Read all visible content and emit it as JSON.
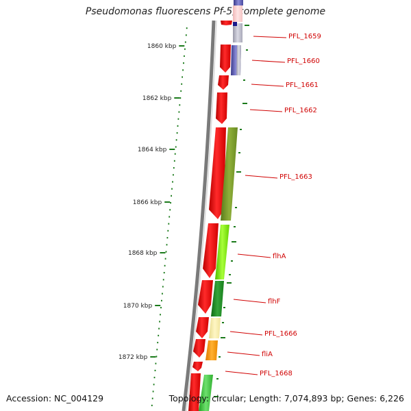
{
  "title": "Pseudomonas fluorescens Pf-5, complete genome",
  "accession": "Accession: NC_004129",
  "topology": "Topology: circular; Length: 7,074,893 bp; Genes: 6,226",
  "scale_ticks": [
    {
      "label": "1860 kbp"
    },
    {
      "label": "1862 kbp"
    },
    {
      "label": "1864 kbp"
    },
    {
      "label": "1866 kbp"
    },
    {
      "label": "1868 kbp"
    },
    {
      "label": "1870 kbp"
    },
    {
      "label": "1872 kbp"
    }
  ],
  "gene_labels": [
    {
      "name": "PFL_1659"
    },
    {
      "name": "PFL_1660"
    },
    {
      "name": "PFL_1661"
    },
    {
      "name": "PFL_1662"
    },
    {
      "name": "PFL_1663"
    },
    {
      "name": "flhA"
    },
    {
      "name": "flhF"
    },
    {
      "name": "PFL_1666"
    },
    {
      "name": "fliA"
    },
    {
      "name": "PFL_1668"
    }
  ],
  "colors": {
    "cds": "#ff0000",
    "label": "#d00000",
    "backbone": "#808080",
    "scale": "#1a7a1a"
  }
}
